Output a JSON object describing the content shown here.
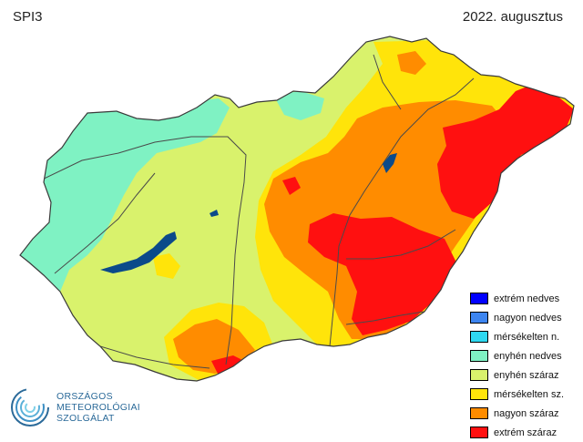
{
  "header": {
    "index_label": "SPI3",
    "date": "2022. augusztus"
  },
  "legend": {
    "items": [
      {
        "label": "extrém nedves",
        "color": "#0000ff"
      },
      {
        "label": "nagyon nedves",
        "color": "#3d85f0"
      },
      {
        "label": "mérsékelten n.",
        "color": "#2fd8f0"
      },
      {
        "label": "enyhén nedves",
        "color": "#7ff2c3"
      },
      {
        "label": "enyhén száraz",
        "color": "#d9f26c"
      },
      {
        "label": "mérsékelten sz.",
        "color": "#ffe40a"
      },
      {
        "label": "nagyon száraz",
        "color": "#ff8c00"
      },
      {
        "label": "extrém száraz",
        "color": "#ff1010"
      }
    ]
  },
  "logo": {
    "line1": "ORSZÁGOS",
    "line2": "METEOROLÓGIAI",
    "line3": "SZOLGÁLAT",
    "color": "#2b6a99"
  },
  "map_colors": {
    "water": "#0b4a8a",
    "rivers": "#4a4a4a",
    "border": "#3a3a3a"
  }
}
